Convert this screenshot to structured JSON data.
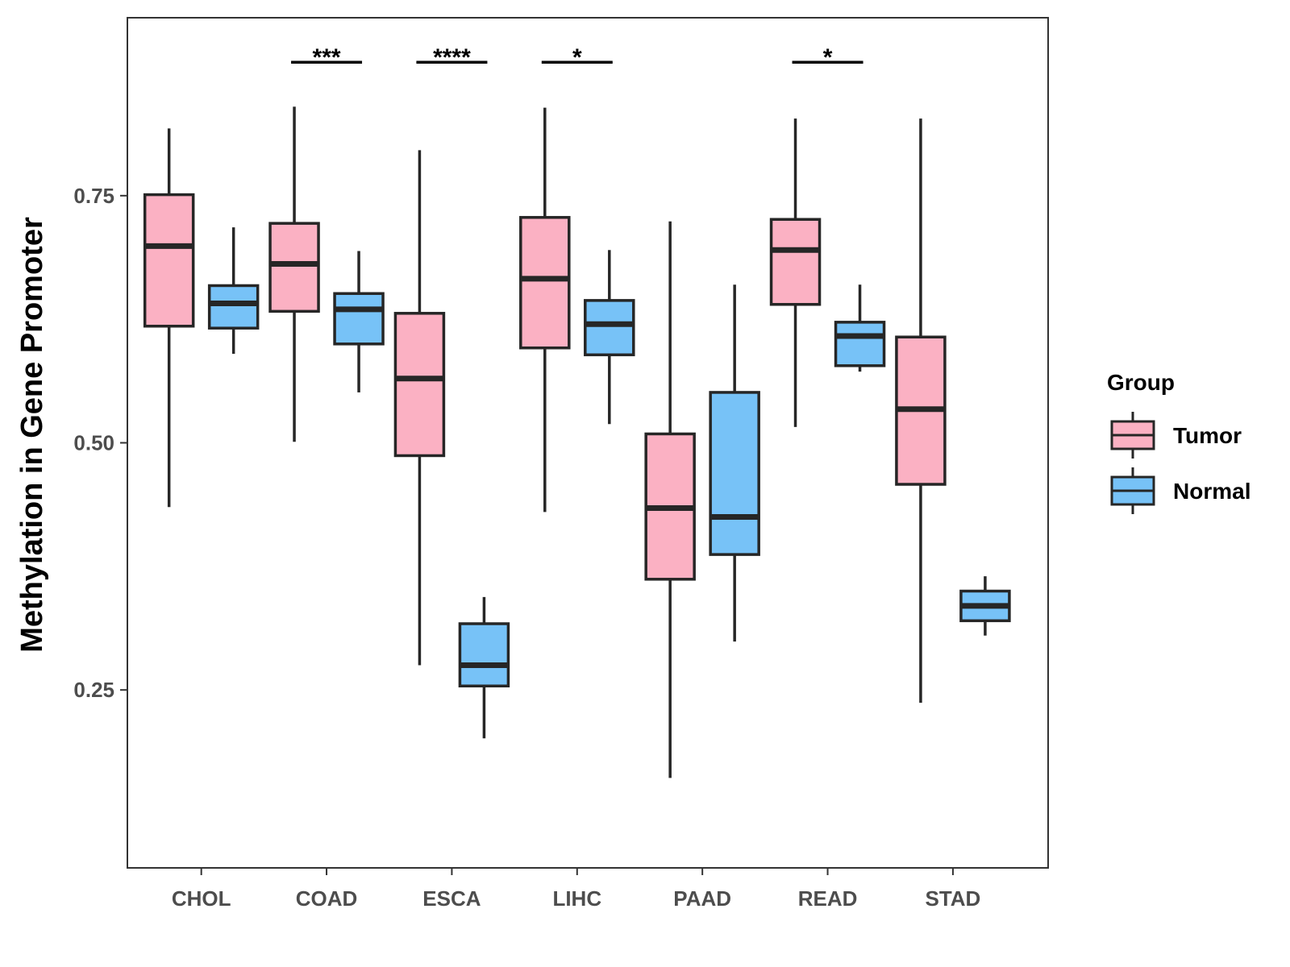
{
  "chart_data": {
    "type": "boxplot",
    "title": "",
    "xlabel": "",
    "ylabel": "Methylation in Gene Promoter",
    "ylim": [
      0.07,
      0.93
    ],
    "yticks": [
      0.25,
      0.5,
      0.75
    ],
    "ytick_labels": [
      "0.25",
      "0.50",
      "0.75"
    ],
    "categories": [
      "CHOL",
      "COAD",
      "ESCA",
      "LIHC",
      "PAAD",
      "READ",
      "STAD"
    ],
    "legend": {
      "title": "Group",
      "position": "right",
      "entries": [
        "Tumor",
        "Normal"
      ]
    },
    "colors": {
      "Tumor": "#fbb1c3",
      "Normal": "#77c2f7",
      "outline": "#262626"
    },
    "series": [
      {
        "name": "Tumor",
        "boxes": [
          {
            "min": 0.435,
            "q1": 0.618,
            "median": 0.699,
            "q3": 0.751,
            "max": 0.818
          },
          {
            "min": 0.501,
            "q1": 0.633,
            "median": 0.681,
            "q3": 0.722,
            "max": 0.84
          },
          {
            "min": 0.275,
            "q1": 0.487,
            "median": 0.565,
            "q3": 0.631,
            "max": 0.796
          },
          {
            "min": 0.43,
            "q1": 0.596,
            "median": 0.666,
            "q3": 0.728,
            "max": 0.839
          },
          {
            "min": 0.161,
            "q1": 0.362,
            "median": 0.434,
            "q3": 0.509,
            "max": 0.724
          },
          {
            "min": 0.516,
            "q1": 0.64,
            "median": 0.695,
            "q3": 0.726,
            "max": 0.828
          },
          {
            "min": 0.237,
            "q1": 0.458,
            "median": 0.534,
            "q3": 0.607,
            "max": 0.828
          }
        ]
      },
      {
        "name": "Normal",
        "boxes": [
          {
            "min": 0.59,
            "q1": 0.616,
            "median": 0.641,
            "q3": 0.659,
            "max": 0.718
          },
          {
            "min": 0.551,
            "q1": 0.6,
            "median": 0.635,
            "q3": 0.651,
            "max": 0.694
          },
          {
            "min": 0.201,
            "q1": 0.254,
            "median": 0.275,
            "q3": 0.317,
            "max": 0.344
          },
          {
            "min": 0.519,
            "q1": 0.589,
            "median": 0.62,
            "q3": 0.644,
            "max": 0.695
          },
          {
            "min": 0.299,
            "q1": 0.387,
            "median": 0.425,
            "q3": 0.551,
            "max": 0.66
          },
          {
            "min": 0.572,
            "q1": 0.578,
            "median": 0.608,
            "q3": 0.622,
            "max": 0.66
          },
          {
            "min": 0.305,
            "q1": 0.32,
            "median": 0.335,
            "q3": 0.35,
            "max": 0.365
          }
        ]
      }
    ],
    "significance": [
      {
        "category": "COAD",
        "label": "***"
      },
      {
        "category": "ESCA",
        "label": "****"
      },
      {
        "category": "LIHC",
        "label": "*"
      },
      {
        "category": "READ",
        "label": "*"
      }
    ],
    "significance_level": 0.885
  }
}
